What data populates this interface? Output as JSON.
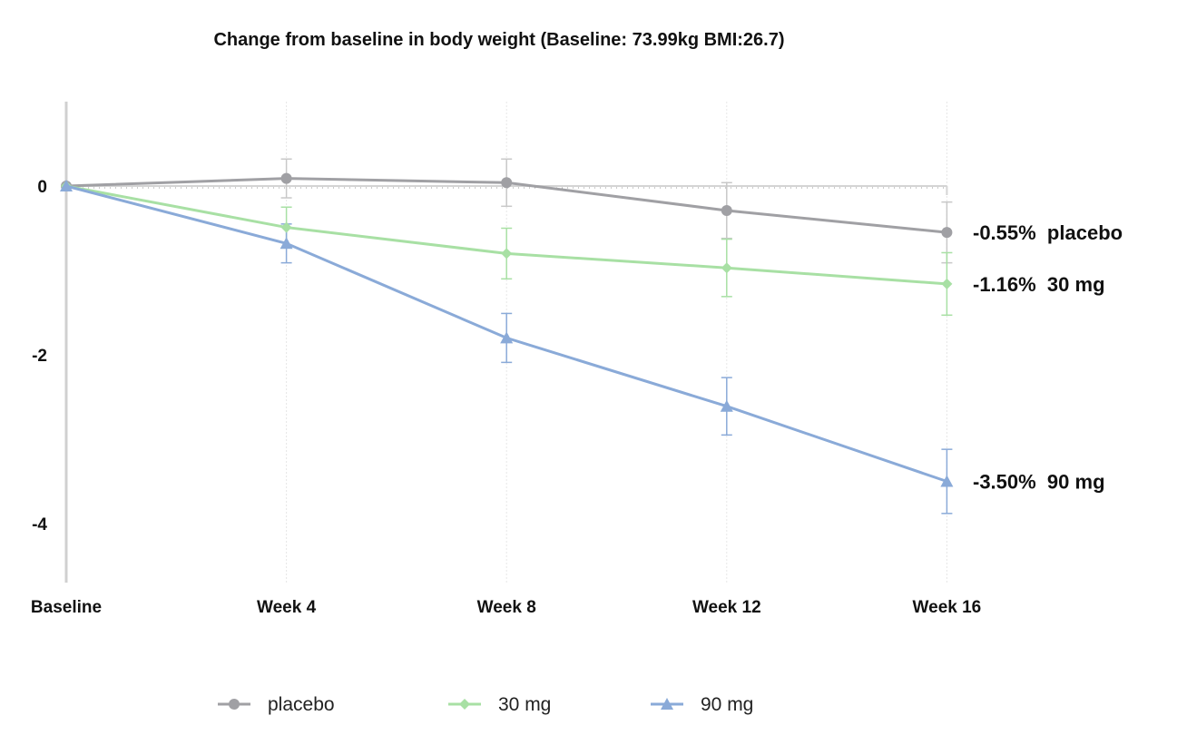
{
  "chart_data": {
    "type": "line",
    "title": "Change from baseline in body weight (Baseline: 73.99kg  BMI:26.7)",
    "xlabel": "",
    "ylabel": "",
    "categories": [
      "Baseline",
      "Week 4",
      "Week 8",
      "Week 12",
      "Week 16"
    ],
    "yticks": [
      0,
      -2,
      -4
    ],
    "ytick_labels": [
      "0",
      "-2",
      "-4"
    ],
    "ylim": [
      -4.7,
      1.0
    ],
    "grid": "vertical dotted",
    "legend_position": "bottom",
    "series": [
      {
        "name": "placebo",
        "color": "#a0a0a4",
        "errcolor": "#c8c8c8",
        "marker": "circle",
        "values": [
          0,
          0.09,
          0.04,
          -0.29,
          -0.55
        ],
        "errors": [
          0,
          0.23,
          0.28,
          0.33,
          0.36
        ],
        "end_label": "-0.55%  placebo"
      },
      {
        "name": "30 mg",
        "color": "#a8e0a4",
        "errcolor": "#a8e0a4",
        "marker": "diamond",
        "values": [
          0,
          -0.49,
          -0.8,
          -0.97,
          -1.16
        ],
        "errors": [
          0,
          0.24,
          0.3,
          0.34,
          0.37
        ],
        "end_label": "-1.16%  30 mg"
      },
      {
        "name": "90 mg",
        "color": "#8aaad8",
        "errcolor": "#8aaad8",
        "marker": "triangle",
        "values": [
          0,
          -0.68,
          -1.8,
          -2.61,
          -3.5
        ],
        "errors": [
          0,
          0.23,
          0.29,
          0.34,
          0.38
        ],
        "end_label": "-3.50%  90 mg"
      }
    ]
  }
}
